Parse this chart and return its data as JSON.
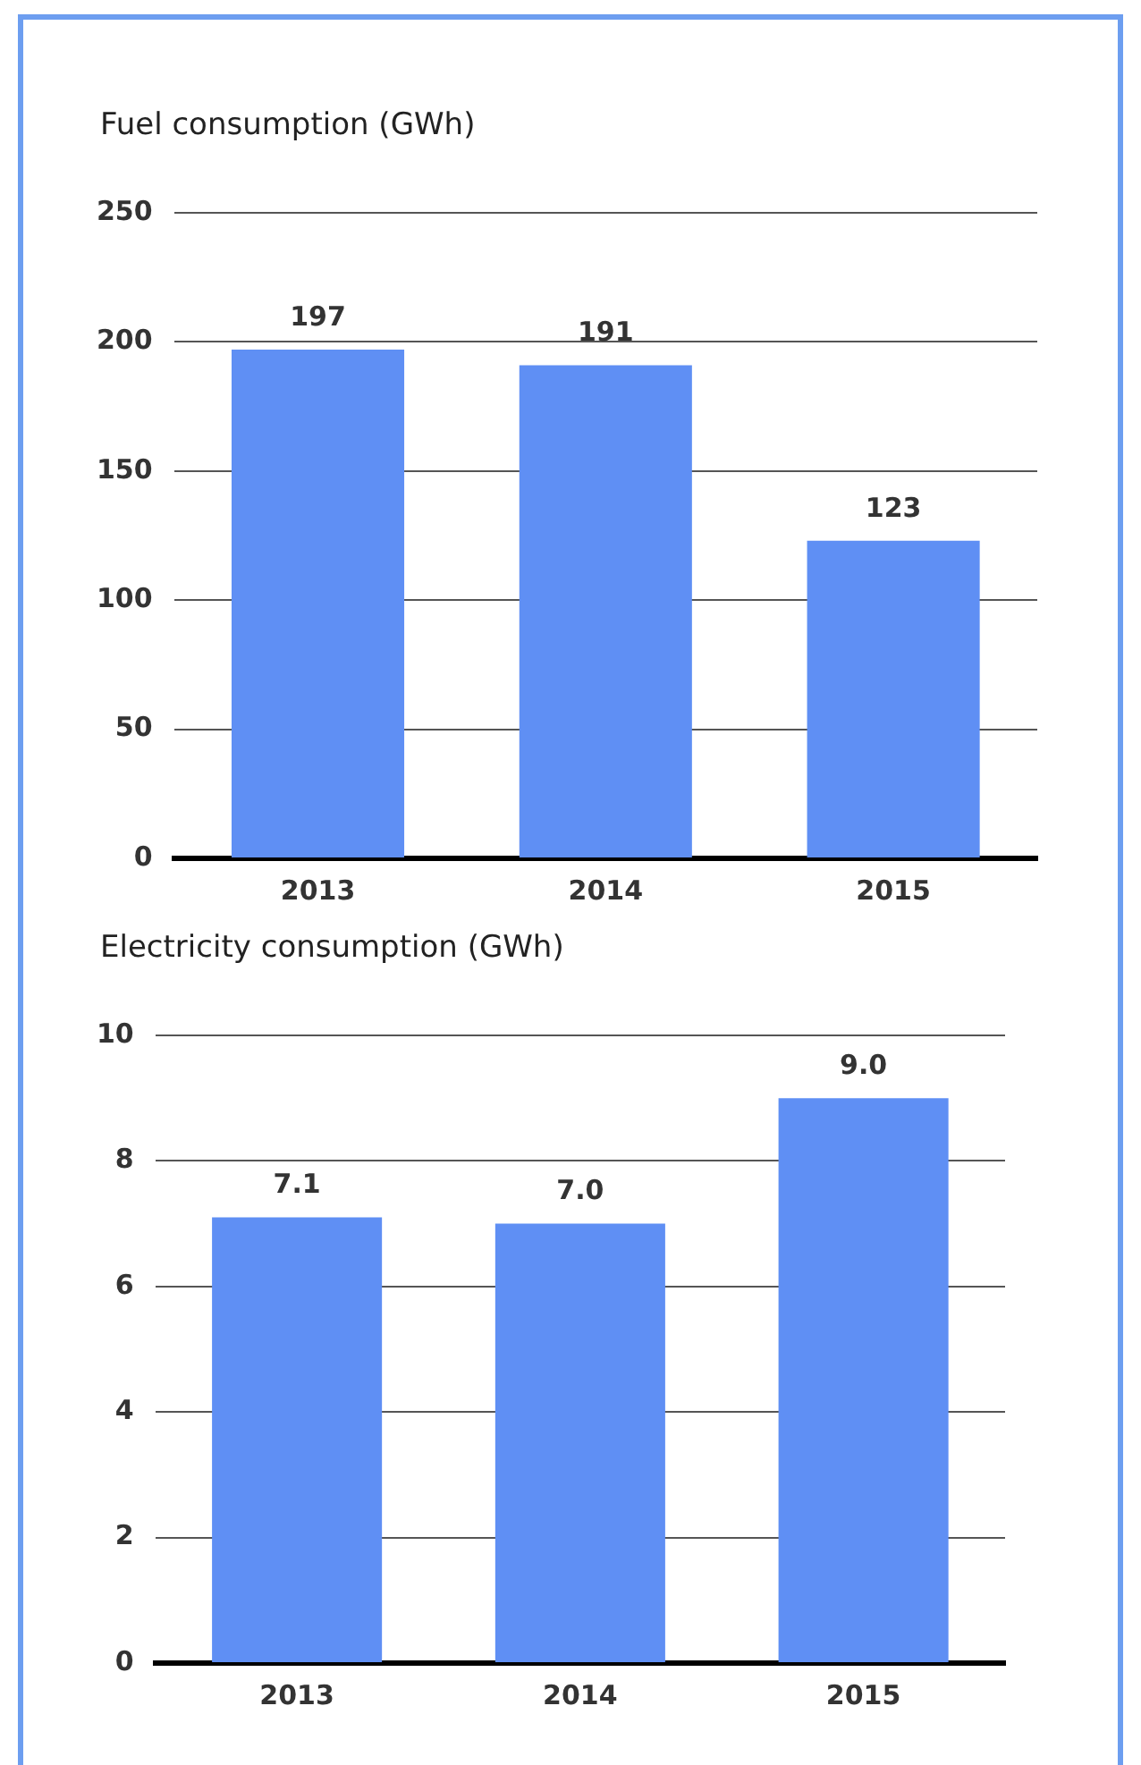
{
  "chart_data": [
    {
      "type": "bar",
      "title": "Fuel consumption (GWh)",
      "categories": [
        "2013",
        "2014",
        "2015"
      ],
      "values": [
        197,
        191,
        123
      ],
      "color": "#5f8ff4",
      "ylim": [
        0,
        250
      ],
      "yticks": [
        0,
        50,
        100,
        150,
        200,
        250
      ],
      "grid": "y",
      "data_labels": true
    },
    {
      "type": "bar",
      "title": "Electricity consumption (GWh)",
      "categories": [
        "2013",
        "2014",
        "2015"
      ],
      "values": [
        7.1,
        7.0,
        9.0
      ],
      "value_labels": [
        "7.1",
        "7.0",
        "9.0"
      ],
      "color": "#5f8ff4",
      "ylim": [
        0,
        10
      ],
      "yticks": [
        0,
        2,
        4,
        6,
        8,
        10
      ],
      "grid": "y"
    }
  ]
}
